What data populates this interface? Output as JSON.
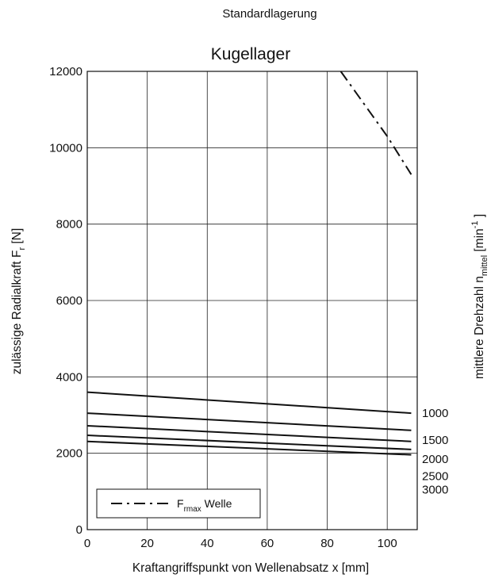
{
  "header": "Standardlagerung",
  "chart_data": {
    "type": "line",
    "title": "Kugellager",
    "xlabel": "Kraftangriffspunkt von Wellenabsatz x [mm]",
    "ylabel": {
      "main": "zulässige Radialkraft F",
      "sub": "r",
      "unit": " [N]"
    },
    "y2label": {
      "main": "mittlere Drehzahl n",
      "sub": "mittel",
      "unit_open": " [min",
      "sup": "-1",
      "unit_close": " ]"
    },
    "xlim": [
      0,
      110
    ],
    "ylim": [
      0,
      12000
    ],
    "xticks": [
      0,
      20,
      40,
      60,
      80,
      100
    ],
    "yticks": [
      0,
      2000,
      4000,
      6000,
      8000,
      10000,
      12000
    ],
    "grid": true,
    "series": [
      {
        "name": "1000",
        "x": [
          0,
          108
        ],
        "y": [
          3600,
          3050
        ],
        "style": "solid"
      },
      {
        "name": "1500",
        "x": [
          0,
          108
        ],
        "y": [
          3050,
          2600
        ],
        "style": "solid"
      },
      {
        "name": "2000",
        "x": [
          0,
          108
        ],
        "y": [
          2720,
          2310
        ],
        "style": "solid"
      },
      {
        "name": "2500",
        "x": [
          0,
          108
        ],
        "y": [
          2470,
          2100
        ],
        "style": "solid"
      },
      {
        "name": "3000",
        "x": [
          0,
          108
        ],
        "y": [
          2310,
          1960
        ],
        "style": "solid"
      },
      {
        "name": "Welle",
        "x": [
          84.5,
          100,
          108
        ],
        "y": [
          12000,
          10300,
          9300
        ],
        "style": "dashdot"
      }
    ],
    "right_labels": [
      {
        "text": "1000",
        "y": 3050
      },
      {
        "text": "1500",
        "y": 2350
      },
      {
        "text": "2000",
        "y": 1850
      },
      {
        "text": "2500",
        "y": 1400
      },
      {
        "text": "3000",
        "y": 1050
      }
    ],
    "legend": {
      "placement": "bottom-left",
      "main": "F",
      "sub": "rmax",
      "suffix": " Welle"
    }
  }
}
